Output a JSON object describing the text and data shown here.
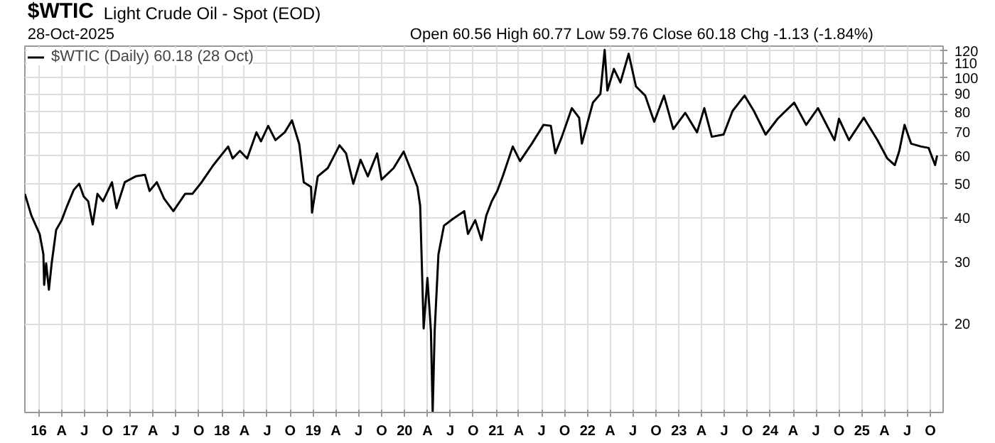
{
  "chart_data": {
    "type": "line",
    "title": "$WTIC",
    "subtitle": "Light Crude Oil - Spot (EOD)",
    "annotations": [
      "28-Oct-2025",
      "Open 60.56  High 60.77  Low 59.76  Close 60.18  Chg -1.13 (-1.84%)"
    ],
    "x": [
      "2015-11-06",
      "2015-12-02",
      "2016-01-04",
      "2016-01-19",
      "2016-01-22",
      "2016-01-30",
      "2016-02-10",
      "2016-02-21",
      "2016-03-10",
      "2016-04-01",
      "2016-04-23",
      "2016-05-19",
      "2016-06-10",
      "2016-06-28",
      "2016-07-16",
      "2016-08-03",
      "2016-08-22",
      "2016-09-13",
      "2016-10-19",
      "2016-11-06",
      "2016-12-09",
      "2017-01-22",
      "2017-02-28",
      "2017-03-18",
      "2017-04-16",
      "2017-05-15",
      "2017-06-21",
      "2017-08-07",
      "2017-09-05",
      "2017-10-12",
      "2017-11-28",
      "2018-01-26",
      "2018-02-13",
      "2018-03-14",
      "2018-04-12",
      "2018-05-19",
      "2018-06-06",
      "2018-07-05",
      "2018-08-03",
      "2018-09-09",
      "2018-10-08",
      "2018-11-06",
      "2018-11-24",
      "2018-12-23",
      "2018-12-27",
      "2019-01-19",
      "2019-02-28",
      "2019-04-16",
      "2019-05-12",
      "2019-06-10",
      "2019-07-09",
      "2019-08-07",
      "2019-09-13",
      "2019-10-01",
      "2019-11-18",
      "2019-12-28",
      "2020-01-23",
      "2020-02-21",
      "2020-03-03",
      "2020-03-17",
      "2020-04-01",
      "2020-04-15",
      "2020-04-22",
      "2020-04-30",
      "2020-05-15",
      "2020-06-06",
      "2020-07-13",
      "2020-08-26",
      "2020-09-10",
      "2020-10-09",
      "2020-11-03",
      "2020-11-22",
      "2020-12-14",
      "2021-01-05",
      "2021-01-27",
      "2021-03-08",
      "2021-04-06",
      "2021-05-23",
      "2021-07-09",
      "2021-08-07",
      "2021-08-25",
      "2021-09-20",
      "2021-10-30",
      "2021-11-28",
      "2021-12-09",
      "2022-01-22",
      "2022-02-21",
      "2022-03-10",
      "2022-03-21",
      "2022-04-16",
      "2022-05-12",
      "2022-06-14",
      "2022-07-13",
      "2022-08-19",
      "2022-09-24",
      "2022-11-02",
      "2022-12-09",
      "2023-01-26",
      "2023-03-14",
      "2023-04-12",
      "2023-05-12",
      "2023-06-28",
      "2023-08-03",
      "2023-09-20",
      "2023-10-27",
      "2023-12-13",
      "2024-01-30",
      "2024-04-05",
      "2024-05-23",
      "2024-07-09",
      "2024-09-13",
      "2024-10-01",
      "2024-11-10",
      "2025-01-08",
      "2025-03-04",
      "2025-04-12",
      "2025-05-12",
      "2025-05-30",
      "2025-06-20",
      "2025-07-16",
      "2025-08-25",
      "2025-09-24",
      "2025-10-20",
      "2025-10-28"
    ],
    "series": [
      {
        "name": "$WTIC (Daily) 60.18 (28 Oct)",
        "color": "#000000",
        "values": [
          46.8,
          40.6,
          36,
          31.5,
          25.8,
          29.7,
          25,
          29.7,
          37,
          39.4,
          43.3,
          48,
          50,
          46,
          44.6,
          38.3,
          46.8,
          44.6,
          50.5,
          42.6,
          50.5,
          52.5,
          53,
          47.7,
          50.5,
          45.4,
          41.8,
          46.8,
          46.8,
          50.5,
          56.5,
          63.8,
          59,
          62,
          59,
          70,
          66,
          73,
          66.5,
          70,
          75.7,
          64.8,
          50.5,
          49,
          41.4,
          52.5,
          55.4,
          64.3,
          61,
          50,
          58.5,
          52.5,
          61,
          51.4,
          55.4,
          61.7,
          55.4,
          49,
          43.3,
          19.4,
          27,
          19.1,
          11.2,
          19.1,
          31.5,
          38,
          39.8,
          41.8,
          36,
          39.4,
          34.6,
          40.6,
          44.6,
          47.7,
          52.5,
          63.8,
          58,
          65,
          73.5,
          73,
          61,
          68,
          82,
          77,
          65,
          85,
          90,
          120,
          92,
          106,
          97,
          117,
          94.5,
          89,
          75,
          89,
          71.5,
          79.5,
          70,
          82,
          68,
          69,
          80.5,
          89,
          80.5,
          69,
          76.5,
          85,
          73.5,
          82,
          66.5,
          76.5,
          66.5,
          77,
          66.5,
          59,
          56.5,
          62,
          73.5,
          65,
          63.8,
          63.2,
          56.5,
          60.18
        ]
      }
    ],
    "xlim": [
      "2015-11-06",
      "2025-11-21"
    ],
    "xticks": [
      {
        "value": "2016-01-01",
        "label": "16"
      },
      {
        "value": "2016-04-01",
        "label": "A"
      },
      {
        "value": "2016-07-01",
        "label": "J"
      },
      {
        "value": "2016-10-01",
        "label": "O"
      },
      {
        "value": "2017-01-01",
        "label": "17"
      },
      {
        "value": "2017-04-01",
        "label": "A"
      },
      {
        "value": "2017-07-01",
        "label": "J"
      },
      {
        "value": "2017-10-01",
        "label": "O"
      },
      {
        "value": "2018-01-01",
        "label": "18"
      },
      {
        "value": "2018-04-01",
        "label": "A"
      },
      {
        "value": "2018-07-01",
        "label": "J"
      },
      {
        "value": "2018-10-01",
        "label": "O"
      },
      {
        "value": "2019-01-01",
        "label": "19"
      },
      {
        "value": "2019-04-01",
        "label": "A"
      },
      {
        "value": "2019-07-01",
        "label": "J"
      },
      {
        "value": "2019-10-01",
        "label": "O"
      },
      {
        "value": "2020-01-01",
        "label": "20"
      },
      {
        "value": "2020-04-01",
        "label": "A"
      },
      {
        "value": "2020-07-01",
        "label": "J"
      },
      {
        "value": "2020-10-01",
        "label": "O"
      },
      {
        "value": "2021-01-01",
        "label": "21"
      },
      {
        "value": "2021-04-01",
        "label": "A"
      },
      {
        "value": "2021-07-01",
        "label": "J"
      },
      {
        "value": "2021-10-01",
        "label": "O"
      },
      {
        "value": "2022-01-01",
        "label": "22"
      },
      {
        "value": "2022-04-01",
        "label": "A"
      },
      {
        "value": "2022-07-01",
        "label": "J"
      },
      {
        "value": "2022-10-01",
        "label": "O"
      },
      {
        "value": "2023-01-01",
        "label": "23"
      },
      {
        "value": "2023-04-01",
        "label": "A"
      },
      {
        "value": "2023-07-01",
        "label": "J"
      },
      {
        "value": "2023-10-01",
        "label": "O"
      },
      {
        "value": "2024-01-01",
        "label": "24"
      },
      {
        "value": "2024-04-01",
        "label": "A"
      },
      {
        "value": "2024-07-01",
        "label": "J"
      },
      {
        "value": "2024-10-01",
        "label": "O"
      },
      {
        "value": "2025-01-01",
        "label": "25"
      },
      {
        "value": "2025-04-01",
        "label": "A"
      },
      {
        "value": "2025-07-01",
        "label": "J"
      },
      {
        "value": "2025-10-01",
        "label": "O"
      }
    ],
    "ylim": [
      11.2,
      123
    ],
    "yticks": [
      20,
      30,
      40,
      50,
      60,
      70,
      80,
      90,
      100,
      110,
      120
    ],
    "log": "y",
    "grid": true,
    "legend": "top left",
    "marker": "none",
    "line_style": "solid"
  }
}
